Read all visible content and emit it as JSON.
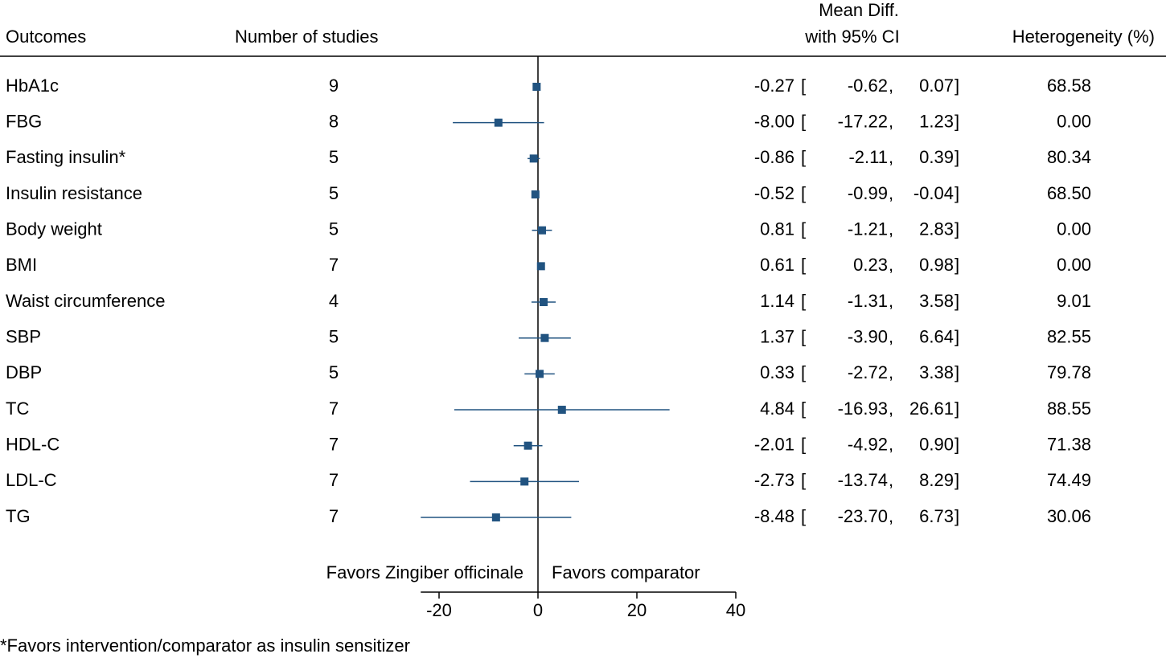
{
  "chart_data": {
    "type": "forest",
    "column_headers": {
      "outcome": "Outcomes",
      "studies": "Number of studies",
      "effect": [
        "Mean Diff.",
        "with 95% CI"
      ],
      "heterogeneity": "Heterogeneity (%)"
    },
    "categories": [
      "HbA1c",
      "FBG",
      "Fasting insulin*",
      "Insulin resistance",
      "Body weight",
      "BMI",
      "Waist circumference",
      "SBP",
      "DBP",
      "TC",
      "HDL-C",
      "LDL-C",
      "TG"
    ],
    "studies": [
      9,
      8,
      5,
      5,
      5,
      7,
      4,
      5,
      5,
      7,
      7,
      7,
      7
    ],
    "values": [
      -0.27,
      -8.0,
      -0.86,
      -0.52,
      0.81,
      0.61,
      1.14,
      1.37,
      0.33,
      4.84,
      -2.01,
      -2.73,
      -8.48
    ],
    "value_labels": [
      "-0.27",
      "-8.00",
      "-0.86",
      "-0.52",
      "0.81",
      "0.61",
      "1.14",
      "1.37",
      "0.33",
      "4.84",
      "-2.01",
      "-2.73",
      "-8.48"
    ],
    "lower": [
      -0.62,
      -17.22,
      -2.11,
      -0.99,
      -1.21,
      0.23,
      -1.31,
      -3.9,
      -2.72,
      -16.93,
      -4.92,
      -13.74,
      -23.7
    ],
    "lower_labels": [
      "-0.62",
      "-17.22",
      "-2.11",
      "-0.99",
      "-1.21",
      "0.23",
      "-1.31",
      "-3.90",
      "-2.72",
      "-16.93",
      "-4.92",
      "-13.74",
      "-23.70"
    ],
    "upper": [
      0.07,
      1.23,
      0.39,
      -0.04,
      2.83,
      0.98,
      3.58,
      6.64,
      3.38,
      26.61,
      0.9,
      8.29,
      6.73
    ],
    "upper_labels": [
      "0.07",
      "1.23",
      "0.39",
      "-0.04",
      "2.83",
      "0.98",
      "3.58",
      "6.64",
      "3.38",
      "26.61",
      "0.90",
      "8.29",
      "6.73"
    ],
    "heterogeneity": [
      68.58,
      0,
      80.34,
      68.5,
      0,
      0,
      9.01,
      82.55,
      79.78,
      88.55,
      71.38,
      74.49,
      30.06
    ],
    "heterogeneity_labels": [
      "68.58",
      "0.00",
      "80.34",
      "68.50",
      "0.00",
      "0.00",
      "9.01",
      "82.55",
      "79.78",
      "88.55",
      "71.38",
      "74.49",
      "30.06"
    ],
    "ci_open": "[",
    "ci_sep": ",",
    "ci_close": "]",
    "favors_left": "Favors Zingiber officinale",
    "favors_right": "Favors comparator",
    "footnote": "*Favors intervention/comparator as insulin sensitizer",
    "xlim": [
      -23.7,
      40
    ],
    "xticks": [
      -20,
      0,
      20,
      40
    ],
    "color": "#215380"
  }
}
